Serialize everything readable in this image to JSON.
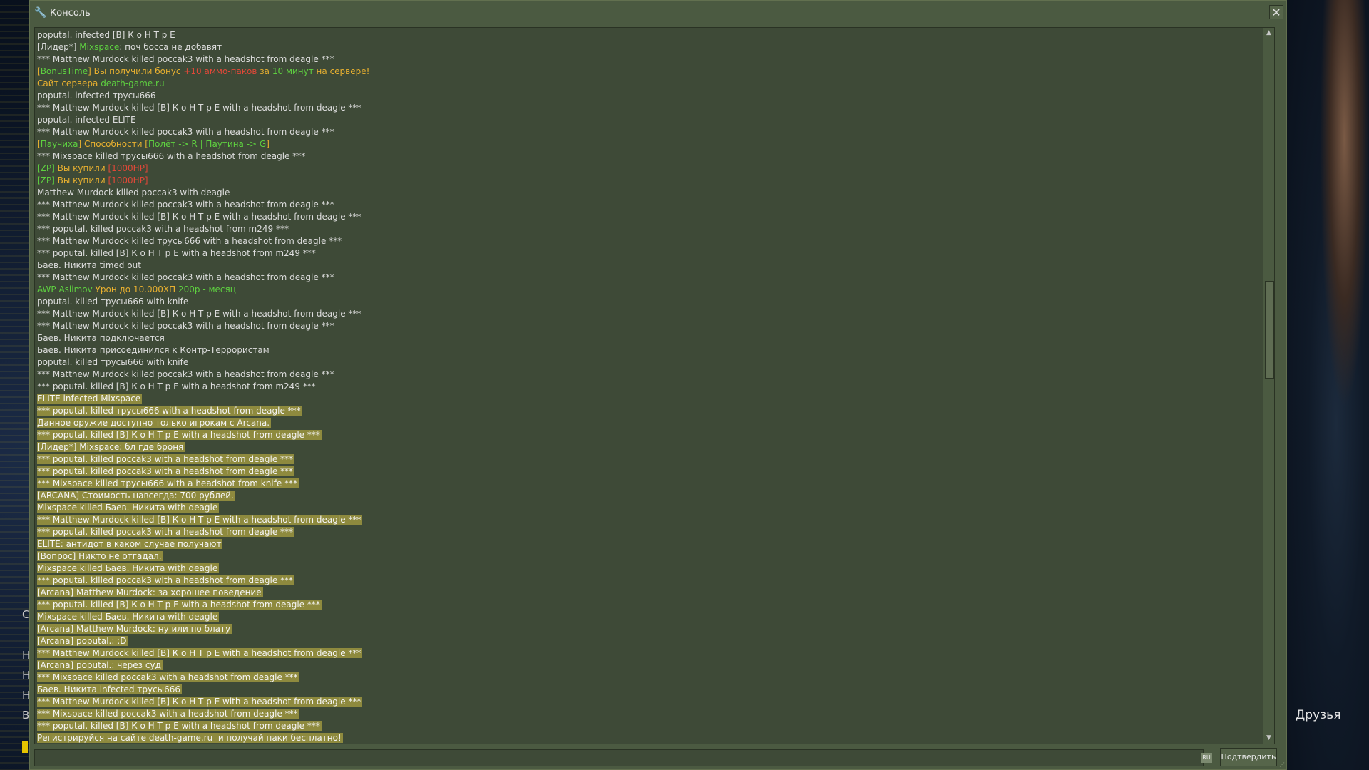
{
  "window": {
    "title": "Консоль",
    "close_icon": "close-icon"
  },
  "background": {
    "friends_label": "Друзья",
    "left_glyphs": [
      "C",
      "H",
      "H",
      "H",
      "B"
    ]
  },
  "log": [
    [
      {
        "t": "poputal. infected [B] К о Н Т р Е"
      }
    ],
    [
      {
        "t": "[Лидер*] "
      },
      {
        "t": "Mixspace",
        "c": "green"
      },
      {
        "t": ": поч босса не добавят"
      }
    ],
    [
      {
        "t": "*** Matthew Murdock killed россak3 with a headshot from deagle ***"
      }
    ],
    [
      {
        "t": "[",
        "c": "orange"
      },
      {
        "t": "BonusTime",
        "c": "green"
      },
      {
        "t": "] Вы получили бонус ",
        "c": "orange"
      },
      {
        "t": "+10 аммо-паков",
        "c": "red"
      },
      {
        "t": " за ",
        "c": "orange"
      },
      {
        "t": "10 минут",
        "c": "green"
      },
      {
        "t": " на сервере!",
        "c": "orange"
      }
    ],
    [
      {
        "t": "Сайт сервера ",
        "c": "orange"
      },
      {
        "t": "death-game.ru",
        "c": "green"
      }
    ],
    [
      {
        "t": "poputal. infected трусы666"
      }
    ],
    [
      {
        "t": "*** Matthew Murdock killed [B] К о Н Т р Е with a headshot from deagle ***"
      }
    ],
    [
      {
        "t": "poputal. infected ELITE"
      }
    ],
    [
      {
        "t": "*** Matthew Murdock killed россak3 with a headshot from deagle ***"
      }
    ],
    [
      {
        "t": "[",
        "c": "orange"
      },
      {
        "t": "Паучиха",
        "c": "green"
      },
      {
        "t": "] Способности [",
        "c": "orange"
      },
      {
        "t": "Полёт -> R | Паутина -> G",
        "c": "green"
      },
      {
        "t": "]",
        "c": "orange"
      }
    ],
    [
      {
        "t": "*** Mixspace killed трусы666 with a headshot from deagle ***"
      }
    ],
    [
      {
        "t": "[ZP]",
        "c": "green"
      },
      {
        "t": " Вы купили ",
        "c": "orange"
      },
      {
        "t": "[1000HP]",
        "c": "red"
      }
    ],
    [
      {
        "t": "[ZP]",
        "c": "green"
      },
      {
        "t": " Вы купили ",
        "c": "orange"
      },
      {
        "t": "[1000HP]",
        "c": "red"
      }
    ],
    [
      {
        "t": "Matthew Murdock killed россak3 with deagle"
      }
    ],
    [
      {
        "t": "*** Matthew Murdock killed россak3 with a headshot from deagle ***"
      }
    ],
    [
      {
        "t": "*** Matthew Murdock killed [B] К о Н Т р Е with a headshot from deagle ***"
      }
    ],
    [
      {
        "t": "*** poputal. killed россak3 with a headshot from m249 ***"
      }
    ],
    [
      {
        "t": "*** Matthew Murdock killed трусы666 with a headshot from deagle ***"
      }
    ],
    [
      {
        "t": "*** poputal. killed [B] К о Н Т р Е with a headshot from m249 ***"
      }
    ],
    [
      {
        "t": "Баев. Никита timed out"
      }
    ],
    [
      {
        "t": "*** Matthew Murdock killed россak3 with a headshot from deagle ***"
      }
    ],
    [
      {
        "t": "AWP Asiimov",
        "c": "green"
      },
      {
        "t": " Урон до 10.000ХП ",
        "c": "orange"
      },
      {
        "t": "200р - месяц",
        "c": "green"
      }
    ],
    [
      {
        "t": "poputal. killed трусы666 with knife"
      }
    ],
    [
      {
        "t": "*** Matthew Murdock killed [B] К о Н Т р Е with a headshot from deagle ***"
      }
    ],
    [
      {
        "t": "*** Matthew Murdock killed россak3 with a headshot from deagle ***"
      }
    ],
    [
      {
        "t": "Баев. Никита подключается"
      }
    ],
    [
      {
        "t": "Баев. Никита присоединился к Контр-Террористам"
      }
    ],
    [
      {
        "t": "poputal. killed трусы666 with knife"
      }
    ],
    [
      {
        "t": "*** Matthew Murdock killed россak3 with a headshot from deagle ***"
      }
    ],
    [
      {
        "t": "*** poputal. killed [B] К о Н Т р Е with a headshot from m249 ***"
      }
    ],
    [
      {
        "t": "ELITE infected Mixspace",
        "hl": true
      }
    ],
    [
      {
        "t": "*** poputal. killed трусы666 with a headshot from deagle ***",
        "hl": true
      }
    ],
    [
      {
        "t": "Данное оружие доступно только игрокам с Arcana.",
        "hl": true
      }
    ],
    [
      {
        "t": "*** poputal. killed [B] К о Н Т р Е with a headshot from deagle ***",
        "hl": true
      }
    ],
    [
      {
        "t": "[Лидер*] Mixspace: бл где броня",
        "hl": true
      }
    ],
    [
      {
        "t": "*** poputal. killed россak3 with a headshot from deagle ***",
        "hl": true
      }
    ],
    [
      {
        "t": "*** poputal. killed россak3 with a headshot from deagle ***",
        "hl": true
      }
    ],
    [
      {
        "t": "*** Mixspace killed трусы666 with a headshot from knife ***",
        "hl": true
      }
    ],
    [
      {
        "t": "[ARCANA] Стоимость навсегда: 700 рублей.",
        "hl": true
      }
    ],
    [
      {
        "t": "Mixspace killed Баев. Никита with deagle",
        "hl": true
      }
    ],
    [
      {
        "t": "*** Matthew Murdock killed [B] К о Н Т р Е with a headshot from deagle ***",
        "hl": true
      }
    ],
    [
      {
        "t": "*** poputal. killed россak3 with a headshot from deagle ***",
        "hl": true
      }
    ],
    [
      {
        "t": "ELITE: антидот в каком случае получают",
        "hl": true
      }
    ],
    [
      {
        "t": "[Вопрос] Никто не отгадал.",
        "hl": true
      }
    ],
    [
      {
        "t": "Mixspace killed Баев. Никита with deagle",
        "hl": true
      }
    ],
    [
      {
        "t": "*** poputal. killed россak3 with a headshot from deagle ***",
        "hl": true
      }
    ],
    [
      {
        "t": "[Arcana] Matthew Murdock: за хорошее поведение",
        "hl": true
      }
    ],
    [
      {
        "t": "*** poputal. killed [B] К о Н Т р Е with a headshot from deagle ***",
        "hl": true
      }
    ],
    [
      {
        "t": "Mixspace killed Баев. Никита with deagle",
        "hl": true
      }
    ],
    [
      {
        "t": "[Arcana] Matthew Murdock: ну или по блату",
        "hl": true
      }
    ],
    [
      {
        "t": "[Arcana] poputal.: :D",
        "hl": true
      }
    ],
    [
      {
        "t": "*** Matthew Murdock killed [B] К о Н Т р Е with a headshot from deagle ***",
        "hl": true
      }
    ],
    [
      {
        "t": "[Arcana] poputal.: через суд",
        "hl": true
      }
    ],
    [
      {
        "t": "*** Mixspace killed россak3 with a headshot from deagle ***",
        "hl": true
      }
    ],
    [
      {
        "t": "Баев. Никита infected трусы666",
        "hl": true
      }
    ],
    [
      {
        "t": "*** Matthew Murdock killed [B] К о Н Т р Е with a headshot from deagle ***",
        "hl": true
      }
    ],
    [
      {
        "t": "*** Mixspace killed россak3 with a headshot from deagle ***",
        "hl": true
      }
    ],
    [
      {
        "t": "*** poputal. killed [B] К о Н Т р Е with a headshot from deagle ***",
        "hl": true
      }
    ],
    [
      {
        "t": "Регистрируйся на сайте death-game.ru  и получай паки бесплатно!",
        "hl": true
      }
    ]
  ],
  "input": {
    "value": "",
    "lang_badge": "RU"
  },
  "submit_label": "Подтвердить",
  "colors": {
    "green": "#5ed040",
    "orange": "#e8b030",
    "red": "#e04838",
    "highlight": "#8e8a3e",
    "panel": "#4b5a41"
  }
}
